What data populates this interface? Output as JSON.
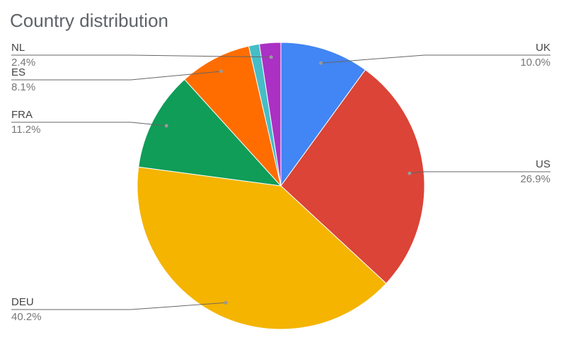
{
  "chart_data": {
    "type": "pie",
    "title": "Country distribution",
    "categories": [
      "UK",
      "US",
      "DEU",
      "FRA",
      "ES",
      null,
      "NL"
    ],
    "values": [
      10.0,
      26.9,
      40.2,
      11.2,
      8.1,
      1.2,
      2.4
    ],
    "value_labels": [
      "10.0%",
      "26.9%",
      "40.2%",
      "11.2%",
      "8.1%",
      null,
      "2.4%"
    ],
    "colors": [
      "#4285f4",
      "#db4437",
      "#f4b400",
      "#0f9d58",
      "#ff6d01",
      "#46bdc6",
      "#ab30c4"
    ]
  }
}
